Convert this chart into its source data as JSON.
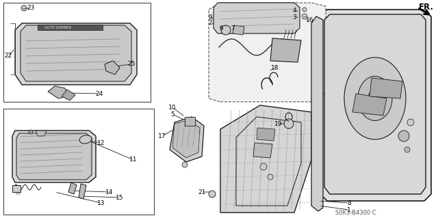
{
  "background_color": "#ffffff",
  "line_color": "#1a1a1a",
  "light_line": "#555555",
  "hatch_color": "#888888",
  "fig_width": 6.4,
  "fig_height": 3.19,
  "dpi": 100,
  "watermark": "S0K3-B4300 C",
  "label_fontsize": 6.5,
  "watermark_fontsize": 6.0,
  "fr_fontsize": 8.5
}
